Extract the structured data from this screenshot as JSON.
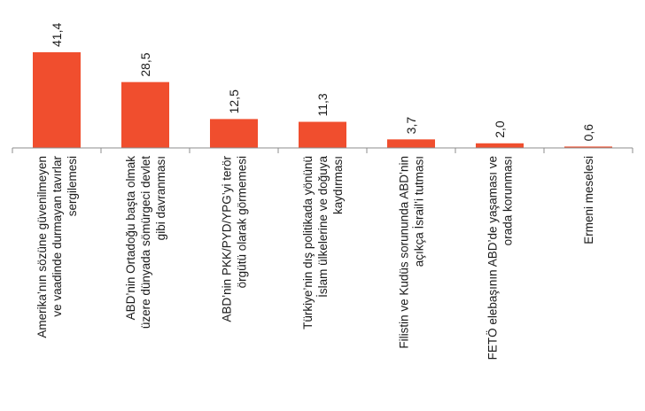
{
  "chart_data": {
    "type": "bar",
    "categories": [
      [
        "Amerika’nın sözüne güvenilmeyen",
        "ve vaadinde durmayan tavırlar",
        "sergilemesi"
      ],
      [
        "ABD’nin Ortadoğu başta olmak",
        "üzere dünyada sömürgeci devlet",
        "gibi davranması"
      ],
      [
        "ABD’nin PKK/PYD/YPG’yi terör",
        "örgütü olarak görmemesi"
      ],
      [
        "Türkiye’nin dış politikada yönünü",
        "İslam ülkelerine ve doğuya",
        "kaydırması"
      ],
      [
        "Filistin ve Kudüs sorununda ABD’nin",
        "açıkça İsrail’i tutması"
      ],
      [
        "FETÖ elebaşının ABD’de yaşaması ve",
        "orada korunması"
      ],
      [
        "Ermeni meselesi"
      ]
    ],
    "values": [
      41.4,
      28.5,
      12.5,
      11.3,
      3.7,
      2.0,
      0.6
    ],
    "value_labels": [
      "41,4",
      "28,5",
      "12,5",
      "11,3",
      "3,7",
      "2,0",
      "0,6"
    ],
    "bar_color": "#f04e2e",
    "axis_color": "#8c8c8c",
    "ylim": [
      0,
      45
    ],
    "title": "",
    "xlabel": "",
    "ylabel": "",
    "grid": false,
    "legend": "none"
  }
}
